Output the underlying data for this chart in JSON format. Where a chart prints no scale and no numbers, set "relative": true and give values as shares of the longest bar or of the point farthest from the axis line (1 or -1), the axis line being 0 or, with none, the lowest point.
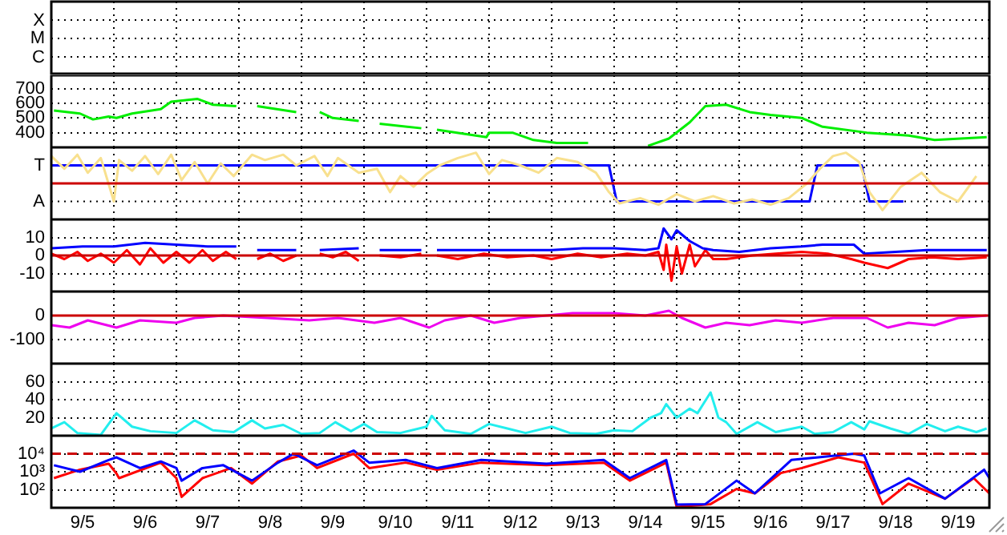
{
  "chart_data": [
    {
      "type": "other",
      "annotations": [
        "X",
        "M",
        "C"
      ]
    },
    {
      "type": "line",
      "xlim": [
        "--09-05",
        "--09-20"
      ],
      "xticks": [
        {
          "value": "--09-06",
          "label": null
        },
        {
          "value": "--09-07",
          "label": null
        },
        {
          "value": "--09-08",
          "label": null
        },
        {
          "value": "--09-09",
          "label": null
        },
        {
          "value": "--09-10",
          "label": null
        },
        {
          "value": "--09-11",
          "label": null
        },
        {
          "value": "--09-12",
          "label": null
        },
        {
          "value": "--09-13",
          "label": null
        },
        {
          "value": "--09-14",
          "label": null
        },
        {
          "value": "--09-15",
          "label": null
        },
        {
          "value": "--09-16",
          "label": null
        },
        {
          "value": "--09-17",
          "label": null
        },
        {
          "value": "--09-18",
          "label": null
        },
        {
          "value": "--09-19",
          "label": null
        }
      ],
      "ylim": [
        300,
        790
      ],
      "yticks": [
        400,
        500,
        600,
        700
      ],
      "grid": true,
      "tick_labels": "y",
      "series": [
        {
          "color": "#00ee00",
          "x": [
            "--09-05T01:00",
            "--09-05T11:00",
            "--09-05T16:00",
            "--09-05T22:00",
            "--09-06T01:00",
            "--09-06T07:00",
            "--09-06T18:00",
            "--09-06T22:00",
            "--09-07T08:00",
            "--09-07T14:00",
            "--09-07T23:00",
            "--09-08T02:00",
            "--09-08T07:00",
            "--09-08T22:00",
            "--09-09T02:00",
            "--09-09T07:00",
            "--09-09T12:00",
            "--09-09T22:00",
            "--09-10T02:00",
            "--09-10T06:00",
            "--09-10T22:00",
            "--09-11T01:00",
            "--09-11T04:00",
            "--09-11T23:00",
            "--09-12T00:00",
            "--09-12T05:00",
            "--09-12T09:00",
            "--09-12T17:00",
            "--09-13T02:00",
            "--09-13T14:00",
            "--09-14T02:00",
            "--09-14T13:00",
            "--09-14T21:00",
            "--09-15T05:00",
            "--09-15T11:00",
            "--09-15T19:00",
            "--09-16T04:00",
            "--09-16T12:00",
            "--09-17T00:00",
            "--09-17T08:00",
            "--09-18T01:00",
            "--09-18T17:00",
            "--09-19T03:00",
            "--09-19T23:00"
          ],
          "values": [
            550,
            530,
            490,
            510,
            500,
            530,
            560,
            610,
            630,
            590,
            580,
            null,
            580,
            540,
            null,
            540,
            500,
            480,
            null,
            460,
            430,
            null,
            420,
            370,
            400,
            400,
            400,
            350,
            330,
            330,
            null,
            310,
            360,
            470,
            580,
            590,
            540,
            520,
            500,
            440,
            400,
            380,
            350,
            370
          ]
        }
      ]
    },
    {
      "type": "line",
      "relative": true,
      "annotations": [
        "T",
        "A"
      ],
      "xlim": [
        "--09-05",
        "--09-20"
      ],
      "xticks": [
        {
          "value": "--09-06",
          "label": null
        },
        {
          "value": "--09-07",
          "label": null
        },
        {
          "value": "--09-08",
          "label": null
        },
        {
          "value": "--09-09",
          "label": null
        },
        {
          "value": "--09-10",
          "label": null
        },
        {
          "value": "--09-11",
          "label": null
        },
        {
          "value": "--09-12",
          "label": null
        },
        {
          "value": "--09-13",
          "label": null
        },
        {
          "value": "--09-14",
          "label": null
        },
        {
          "value": "--09-15",
          "label": null
        },
        {
          "value": "--09-16",
          "label": null
        },
        {
          "value": "--09-17",
          "label": null
        },
        {
          "value": "--09-18",
          "label": null
        },
        {
          "value": "--09-19",
          "label": null
        }
      ],
      "grid": true,
      "tick_labels": false,
      "ref_lines": [
        {
          "axis": "y",
          "value": 0.54,
          "color": "#cc0000"
        }
      ],
      "series": [
        {
          "color": "#f8e08e",
          "x": [
            "--09-05T00:00",
            "--09-05T05:00",
            "--09-05T10:00",
            "--09-05T14:00",
            "--09-05T19:00",
            "--09-06T00:00",
            "--09-06T02:00",
            "--09-06T07:00",
            "--09-06T12:00",
            "--09-06T17:00",
            "--09-06T22:00",
            "--09-07T02:00",
            "--09-07T07:00",
            "--09-07T12:00",
            "--09-07T17:00",
            "--09-07T22:00",
            "--09-08T05:00",
            "--09-08T10:00",
            "--09-08T17:00",
            "--09-08T22:00",
            "--09-09T05:00",
            "--09-09T10:00",
            "--09-09T14:00",
            "--09-09T22:00",
            "--09-10T05:00",
            "--09-10T10:00",
            "--09-10T14:00",
            "--09-10T19:00",
            "--09-11T00:00",
            "--09-11T05:00",
            "--09-11T12:00",
            "--09-11T19:00",
            "--09-12T00:00",
            "--09-12T05:00",
            "--09-12T12:00",
            "--09-12T19:00",
            "--09-13T02:00",
            "--09-13T10:00",
            "--09-13T17:00",
            "--09-13T22:00",
            "--09-14T02:00",
            "--09-14T10:00",
            "--09-14T17:00",
            "--09-15T00:00",
            "--09-15T07:00",
            "--09-15T14:00",
            "--09-15T22:00",
            "--09-16T05:00",
            "--09-16T12:00",
            "--09-16T19:00",
            "--09-17T02:00",
            "--09-17T07:00",
            "--09-17T12:00",
            "--09-17T17:00",
            "--09-17T22:00",
            "--09-18T02:00",
            "--09-18T07:00",
            "--09-18T14:00",
            "--09-18T22:00",
            "--09-19T05:00",
            "--09-19T12:00",
            "--09-19T19:00"
          ],
          "values": [
            0.95,
            0.76,
            0.97,
            0.7,
            0.92,
            0.27,
            0.89,
            0.73,
            0.95,
            0.68,
            0.97,
            0.59,
            0.86,
            0.54,
            0.84,
            0.65,
            0.97,
            0.89,
            0.97,
            0.81,
            0.95,
            0.65,
            0.92,
            0.7,
            0.76,
            0.41,
            0.65,
            0.49,
            0.68,
            0.81,
            0.92,
            1,
            0.68,
            0.89,
            0.81,
            0.7,
            0.92,
            0.86,
            0.7,
            0.41,
            0.24,
            0.32,
            0.22,
            0.38,
            0.27,
            0.35,
            0.24,
            0.3,
            0.22,
            0.32,
            0.54,
            0.76,
            0.95,
            1,
            0.86,
            0.41,
            0.14,
            0.49,
            0.7,
            0.41,
            0.27,
            0.65
          ]
        },
        {
          "color": "#0000ff",
          "x": [
            "--09-05T00:00",
            "--09-13T22:00",
            "--09-14T01:00",
            "--09-17T03:00",
            "--09-17T06:00",
            "--09-17T23:00",
            "--09-18T02:00",
            "--09-18T15:00"
          ],
          "values": [
            0.81,
            0.81,
            0.27,
            0.27,
            0.81,
            0.81,
            0.27,
            0.27
          ]
        }
      ]
    },
    {
      "type": "line",
      "xlim": [
        "--09-05",
        "--09-20"
      ],
      "xticks": [
        {
          "value": "--09-06",
          "label": null
        },
        {
          "value": "--09-07",
          "label": null
        },
        {
          "value": "--09-08",
          "label": null
        },
        {
          "value": "--09-09",
          "label": null
        },
        {
          "value": "--09-10",
          "label": null
        },
        {
          "value": "--09-11",
          "label": null
        },
        {
          "value": "--09-12",
          "label": null
        },
        {
          "value": "--09-13",
          "label": null
        },
        {
          "value": "--09-14",
          "label": null
        },
        {
          "value": "--09-15",
          "label": null
        },
        {
          "value": "--09-16",
          "label": null
        },
        {
          "value": "--09-17",
          "label": null
        },
        {
          "value": "--09-18",
          "label": null
        },
        {
          "value": "--09-19",
          "label": null
        }
      ],
      "ylim": [
        -20,
        20
      ],
      "yticks": [
        10,
        0,
        -10
      ],
      "grid": true,
      "tick_labels": "y",
      "ref_lines": [
        {
          "axis": "y",
          "value": 0,
          "color": "#cc0000"
        }
      ],
      "series": [
        {
          "color": "#0000ff",
          "x": [
            "--09-05T00:00",
            "--09-05T12:00",
            "--09-06T00:00",
            "--09-06T12:00",
            "--09-07T00:00",
            "--09-07T12:00",
            "--09-07T23:00",
            "--09-08T02:00",
            "--09-08T07:00",
            "--09-08T22:00",
            "--09-09T02:00",
            "--09-09T07:00",
            "--09-09T22:00",
            "--09-10T02:00",
            "--09-10T06:00",
            "--09-10T22:00",
            "--09-11T01:00",
            "--09-11T04:00",
            "--09-11T22:00",
            "--09-12T12:00",
            "--09-13T00:00",
            "--09-13T12:00",
            "--09-14T00:00",
            "--09-14T12:00",
            "--09-14T17:00",
            "--09-14T19:00",
            "--09-14T22:00",
            "--09-15T00:00",
            "--09-15T05:00",
            "--09-15T10:00",
            "--09-15T14:00",
            "--09-16T00:00",
            "--09-16T12:00",
            "--09-17T00:00",
            "--09-17T08:00",
            "--09-17T20:00",
            "--09-18T00:00",
            "--09-18T12:00",
            "--09-19T00:00",
            "--09-19T12:00",
            "--09-19T23:00"
          ],
          "values": [
            4,
            5,
            5,
            7,
            6,
            5,
            5,
            null,
            3,
            3,
            null,
            3,
            4,
            null,
            3,
            3,
            null,
            3,
            3,
            3,
            3,
            4,
            4,
            3,
            4,
            15,
            9,
            14,
            8,
            4,
            3,
            2,
            4,
            5,
            6,
            6,
            1,
            2,
            3,
            3,
            3
          ]
        },
        {
          "color": "#ff0000",
          "x": [
            "--09-05T00:00",
            "--09-05T05:00",
            "--09-05T10:00",
            "--09-05T14:00",
            "--09-05T19:00",
            "--09-06T00:00",
            "--09-06T05:00",
            "--09-06T10:00",
            "--09-06T14:00",
            "--09-06T19:00",
            "--09-07T00:00",
            "--09-07T05:00",
            "--09-07T10:00",
            "--09-07T14:00",
            "--09-07T19:00",
            "--09-07T23:00",
            "--09-08T02:00",
            "--09-08T07:00",
            "--09-08T12:00",
            "--09-08T17:00",
            "--09-08T22:00",
            "--09-09T02:00",
            "--09-09T07:00",
            "--09-09T12:00",
            "--09-09T17:00",
            "--09-09T22:00",
            "--09-10T02:00",
            "--09-10T06:00",
            "--09-10T14:00",
            "--09-10T22:00",
            "--09-11T01:00",
            "--09-11T04:00",
            "--09-11T12:00",
            "--09-11T22:00",
            "--09-12T07:00",
            "--09-12T17:00",
            "--09-13T00:00",
            "--09-13T10:00",
            "--09-13T19:00",
            "--09-14T05:00",
            "--09-14T12:00",
            "--09-14T17:00",
            "--09-14T19:00",
            "--09-14T20:00",
            "--09-14T22:00",
            "--09-15T00:00",
            "--09-15T02:00",
            "--09-15T05:00",
            "--09-15T07:00",
            "--09-15T11:00",
            "--09-15T14:00",
            "--09-15T19:00",
            "--09-16T05:00",
            "--09-16T14:00",
            "--09-17T00:00",
            "--09-17T10:00",
            "--09-17T19:00",
            "--09-18T00:00",
            "--09-18T09:00",
            "--09-18T17:00",
            "--09-19T02:00",
            "--09-19T12:00",
            "--09-19T23:00"
          ],
          "values": [
            1,
            -2,
            2,
            -3,
            1,
            -4,
            3,
            -5,
            4,
            -4,
            2,
            -4,
            3,
            -3,
            2,
            -2,
            null,
            -2,
            1,
            -3,
            0,
            null,
            1,
            -1,
            2,
            -3,
            null,
            0,
            -1,
            1,
            null,
            0,
            -2,
            1,
            -1,
            0,
            -2,
            1,
            -1,
            1,
            0,
            2,
            -8,
            6,
            -14,
            5,
            -10,
            6,
            -6,
            3,
            -2,
            -2,
            0,
            1,
            2,
            1,
            -2,
            -4,
            -7,
            -2,
            -1,
            -2,
            -1
          ]
        }
      ]
    },
    {
      "type": "line",
      "xlim": [
        "--09-05",
        "--09-20"
      ],
      "xticks": [
        {
          "value": "--09-06",
          "label": null
        },
        {
          "value": "--09-07",
          "label": null
        },
        {
          "value": "--09-08",
          "label": null
        },
        {
          "value": "--09-09",
          "label": null
        },
        {
          "value": "--09-10",
          "label": null
        },
        {
          "value": "--09-11",
          "label": null
        },
        {
          "value": "--09-12",
          "label": null
        },
        {
          "value": "--09-13",
          "label": null
        },
        {
          "value": "--09-14",
          "label": null
        },
        {
          "value": "--09-15",
          "label": null
        },
        {
          "value": "--09-16",
          "label": null
        },
        {
          "value": "--09-17",
          "label": null
        },
        {
          "value": "--09-18",
          "label": null
        },
        {
          "value": "--09-19",
          "label": null
        }
      ],
      "ylim": [
        -200,
        100
      ],
      "yticks": [
        0,
        -100
      ],
      "grid": true,
      "tick_labels": "y",
      "ref_lines": [
        {
          "axis": "y",
          "value": 0,
          "color": "#cc0000"
        }
      ],
      "series": [
        {
          "color": "#ee00ee",
          "x": [
            "--09-05T00:00",
            "--09-05T07:00",
            "--09-05T14:00",
            "--09-06T01:00",
            "--09-06T10:00",
            "--09-07T00:00",
            "--09-07T07:00",
            "--09-07T18:00",
            "--09-08T11:00",
            "--09-09T03:00",
            "--09-09T14:00",
            "--09-10T04:00",
            "--09-10T14:00",
            "--09-11T01:00",
            "--09-11T07:00",
            "--09-11T17:00",
            "--09-12T02:00",
            "--09-12T12:00",
            "--09-13T08:00",
            "--09-14T00:00",
            "--09-14T12:00",
            "--09-14T21:00",
            "--09-15T02:00",
            "--09-15T11:00",
            "--09-15T19:00",
            "--09-16T04:00",
            "--09-16T14:00",
            "--09-17T00:00",
            "--09-17T12:00",
            "--09-18T01:00",
            "--09-18T09:00",
            "--09-18T17:00",
            "--09-19T03:00",
            "--09-19T12:00",
            "--09-19T23:00"
          ],
          "values": [
            -40,
            -50,
            -20,
            -50,
            -20,
            -30,
            -10,
            0,
            -10,
            -20,
            -10,
            -30,
            -10,
            -50,
            -20,
            0,
            -30,
            -10,
            10,
            10,
            0,
            20,
            -10,
            -50,
            -30,
            -40,
            -20,
            -30,
            -10,
            -10,
            -50,
            -30,
            -40,
            -10,
            0
          ]
        }
      ]
    },
    {
      "type": "line",
      "xlim": [
        "--09-05",
        "--09-20"
      ],
      "xticks": [
        {
          "value": "--09-06",
          "label": null
        },
        {
          "value": "--09-07",
          "label": null
        },
        {
          "value": "--09-08",
          "label": null
        },
        {
          "value": "--09-09",
          "label": null
        },
        {
          "value": "--09-10",
          "label": null
        },
        {
          "value": "--09-11",
          "label": null
        },
        {
          "value": "--09-12",
          "label": null
        },
        {
          "value": "--09-13",
          "label": null
        },
        {
          "value": "--09-14",
          "label": null
        },
        {
          "value": "--09-15",
          "label": null
        },
        {
          "value": "--09-16",
          "label": null
        },
        {
          "value": "--09-17",
          "label": null
        },
        {
          "value": "--09-18",
          "label": null
        },
        {
          "value": "--09-19",
          "label": null
        }
      ],
      "ylim": [
        0,
        80
      ],
      "yticks": [
        20,
        40,
        60
      ],
      "grid": true,
      "tick_labels": "y",
      "series": [
        {
          "color": "#22eeee",
          "x": [
            "--09-05T00:00",
            "--09-05T05:00",
            "--09-05T10:00",
            "--09-05T19:00",
            "--09-06T01:00",
            "--09-06T07:00",
            "--09-06T14:00",
            "--09-07T00:00",
            "--09-07T07:00",
            "--09-07T14:00",
            "--09-07T22:00",
            "--09-08T05:00",
            "--09-08T10:00",
            "--09-08T17:00",
            "--09-09T00:00",
            "--09-09T07:00",
            "--09-09T13:00",
            "--09-09T19:00",
            "--09-10T00:00",
            "--09-10T05:00",
            "--09-10T14:00",
            "--09-11T00:00",
            "--09-11T02:00",
            "--09-11T07:00",
            "--09-11T17:00",
            "--09-12T00:00",
            "--09-12T07:00",
            "--09-12T14:00",
            "--09-13T00:00",
            "--09-13T07:00",
            "--09-13T17:00",
            "--09-14T00:00",
            "--09-14T07:00",
            "--09-14T14:00",
            "--09-14T18:00",
            "--09-14T20:00",
            "--09-15T00:00",
            "--09-15T05:00",
            "--09-15T08:00",
            "--09-15T13:00",
            "--09-15T16:00",
            "--09-15T19:00",
            "--09-15T23:00",
            "--09-16T07:00",
            "--09-16T14:00",
            "--09-17T00:00",
            "--09-17T05:00",
            "--09-17T12:00",
            "--09-17T19:00",
            "--09-18T00:00",
            "--09-18T02:00",
            "--09-18T10:00",
            "--09-18T17:00",
            "--09-19T00:00",
            "--09-19T07:00",
            "--09-19T12:00",
            "--09-19T19:00",
            "--09-19T23:00"
          ],
          "values": [
            8,
            15,
            3,
            1,
            25,
            10,
            5,
            3,
            17,
            6,
            4,
            17,
            8,
            12,
            2,
            3,
            15,
            5,
            13,
            4,
            3,
            10,
            22,
            6,
            2,
            13,
            8,
            3,
            10,
            3,
            2,
            6,
            5,
            20,
            25,
            35,
            20,
            30,
            25,
            48,
            20,
            15,
            2,
            15,
            4,
            10,
            2,
            4,
            15,
            7,
            16,
            8,
            2,
            13,
            5,
            10,
            4,
            8
          ]
        }
      ]
    },
    {
      "type": "line",
      "log": "y",
      "xlim": [
        "--09-05",
        "--09-20"
      ],
      "xticks": [
        {
          "value": "--09-05T12:00",
          "label": "9/5"
        },
        {
          "value": "--09-06",
          "label": null
        },
        {
          "value": "--09-06T12:00",
          "label": "9/6"
        },
        {
          "value": "--09-07",
          "label": null
        },
        {
          "value": "--09-07T12:00",
          "label": "9/7"
        },
        {
          "value": "--09-08",
          "label": null
        },
        {
          "value": "--09-08T12:00",
          "label": "9/8"
        },
        {
          "value": "--09-09",
          "label": null
        },
        {
          "value": "--09-09T12:00",
          "label": "9/9"
        },
        {
          "value": "--09-10",
          "label": null
        },
        {
          "value": "--09-10T12:00",
          "label": "9/10"
        },
        {
          "value": "--09-11",
          "label": null
        },
        {
          "value": "--09-11T12:00",
          "label": "9/11"
        },
        {
          "value": "--09-12",
          "label": null
        },
        {
          "value": "--09-12T12:00",
          "label": "9/12"
        },
        {
          "value": "--09-13",
          "label": null
        },
        {
          "value": "--09-13T12:00",
          "label": "9/13"
        },
        {
          "value": "--09-14",
          "label": null
        },
        {
          "value": "--09-14T12:00",
          "label": "9/14"
        },
        {
          "value": "--09-15",
          "label": null
        },
        {
          "value": "--09-15T12:00",
          "label": "9/15"
        },
        {
          "value": "--09-16",
          "label": null
        },
        {
          "value": "--09-16T12:00",
          "label": "9/16"
        },
        {
          "value": "--09-17",
          "label": null
        },
        {
          "value": "--09-17T12:00",
          "label": "9/17"
        },
        {
          "value": "--09-18",
          "label": null
        },
        {
          "value": "--09-18T12:00",
          "label": "9/18"
        },
        {
          "value": "--09-19",
          "label": null
        },
        {
          "value": "--09-19T12:00",
          "label": "9/19"
        }
      ],
      "ylim": [
        10,
        100000
      ],
      "yticks": [
        {
          "value": 10000,
          "label": "10⁴"
        },
        {
          "value": 1000,
          "label": "10³"
        },
        {
          "value": 100,
          "label": "10²"
        }
      ],
      "grid": true,
      "ref_lines": [
        {
          "axis": "y",
          "value": 10000,
          "color": "#cc0000",
          "line_style": "dashed"
        }
      ],
      "series": [
        {
          "color": "#0000ff",
          "x": [
            "--09-05T01:00",
            "--09-05T11:00",
            "--09-05T22:00",
            "--09-06T01:00",
            "--09-06T10:00",
            "--09-06T18:00",
            "--09-07T00:00",
            "--09-07T02:00",
            "--09-07T10:00",
            "--09-07T18:00",
            "--09-08T05:00",
            "--09-08T15:00",
            "--09-08T21:00",
            "--09-09T06:00",
            "--09-09T20:00",
            "--09-10T02:00",
            "--09-10T16:00",
            "--09-11T04:00",
            "--09-11T21:00",
            "--09-12T22:00",
            "--09-13T20:00",
            "--09-14T06:00",
            "--09-14T20:00",
            "--09-15T00:00",
            "--09-15T11:00",
            "--09-15T23:00",
            "--09-16T06:00",
            "--09-16T16:00",
            "--09-16T20:00",
            "--09-17T20:00",
            "--09-18T00:00",
            "--09-18T06:00",
            "--09-18T17:00",
            "--09-19T07:00",
            "--09-19T22:00",
            "--09-20T00:00"
          ],
          "values": [
            2300,
            1000,
            4500,
            6300,
            1600,
            3700,
            1600,
            320,
            1600,
            2300,
            320,
            3200,
            10000,
            2300,
            15000,
            3200,
            4500,
            1600,
            4500,
            2800,
            4500,
            440,
            4500,
            15,
            16,
            320,
            63,
            1300,
            4500,
            10000,
            7900,
            63,
            440,
            32,
            1300,
            440
          ]
        },
        {
          "color": "#ff0000",
          "x": [
            "--09-05T01:00",
            "--09-05T11:00",
            "--09-05T22:00",
            "--09-06T01:00",
            "--09-06T02:00",
            "--09-06T18:00",
            "--09-07T00:00",
            "--09-07T02:00",
            "--09-07T10:00",
            "--09-07T21:00",
            "--09-08T05:00",
            "--09-08T15:00",
            "--09-09T00:00",
            "--09-09T06:00",
            "--09-09T20:00",
            "--09-10T02:00",
            "--09-10T16:00",
            "--09-11T04:00",
            "--09-11T21:00",
            "--09-12T22:00",
            "--09-13T20:00",
            "--09-14T06:00",
            "--09-14T20:00",
            "--09-15T00:00",
            "--09-15T13:00",
            "--09-15T23:00",
            "--09-16T06:00",
            "--09-16T16:00",
            "--09-17T00:00",
            "--09-17T14:00",
            "--09-18T00:00",
            "--09-18T07:00",
            "--09-18T17:00",
            "--09-19T07:00",
            "--09-19T18:00",
            "--09-20T00:00"
          ],
          "values": [
            440,
            1300,
            2800,
            790,
            440,
            3200,
            440,
            40,
            440,
            1600,
            220,
            3700,
            7900,
            1600,
            10000,
            1600,
            3200,
            1300,
            3200,
            2300,
            3200,
            320,
            3200,
            11,
            16,
            110,
            63,
            850,
            1600,
            6300,
            3200,
            16,
            220,
            32,
            440,
            63
          ]
        }
      ]
    }
  ]
}
